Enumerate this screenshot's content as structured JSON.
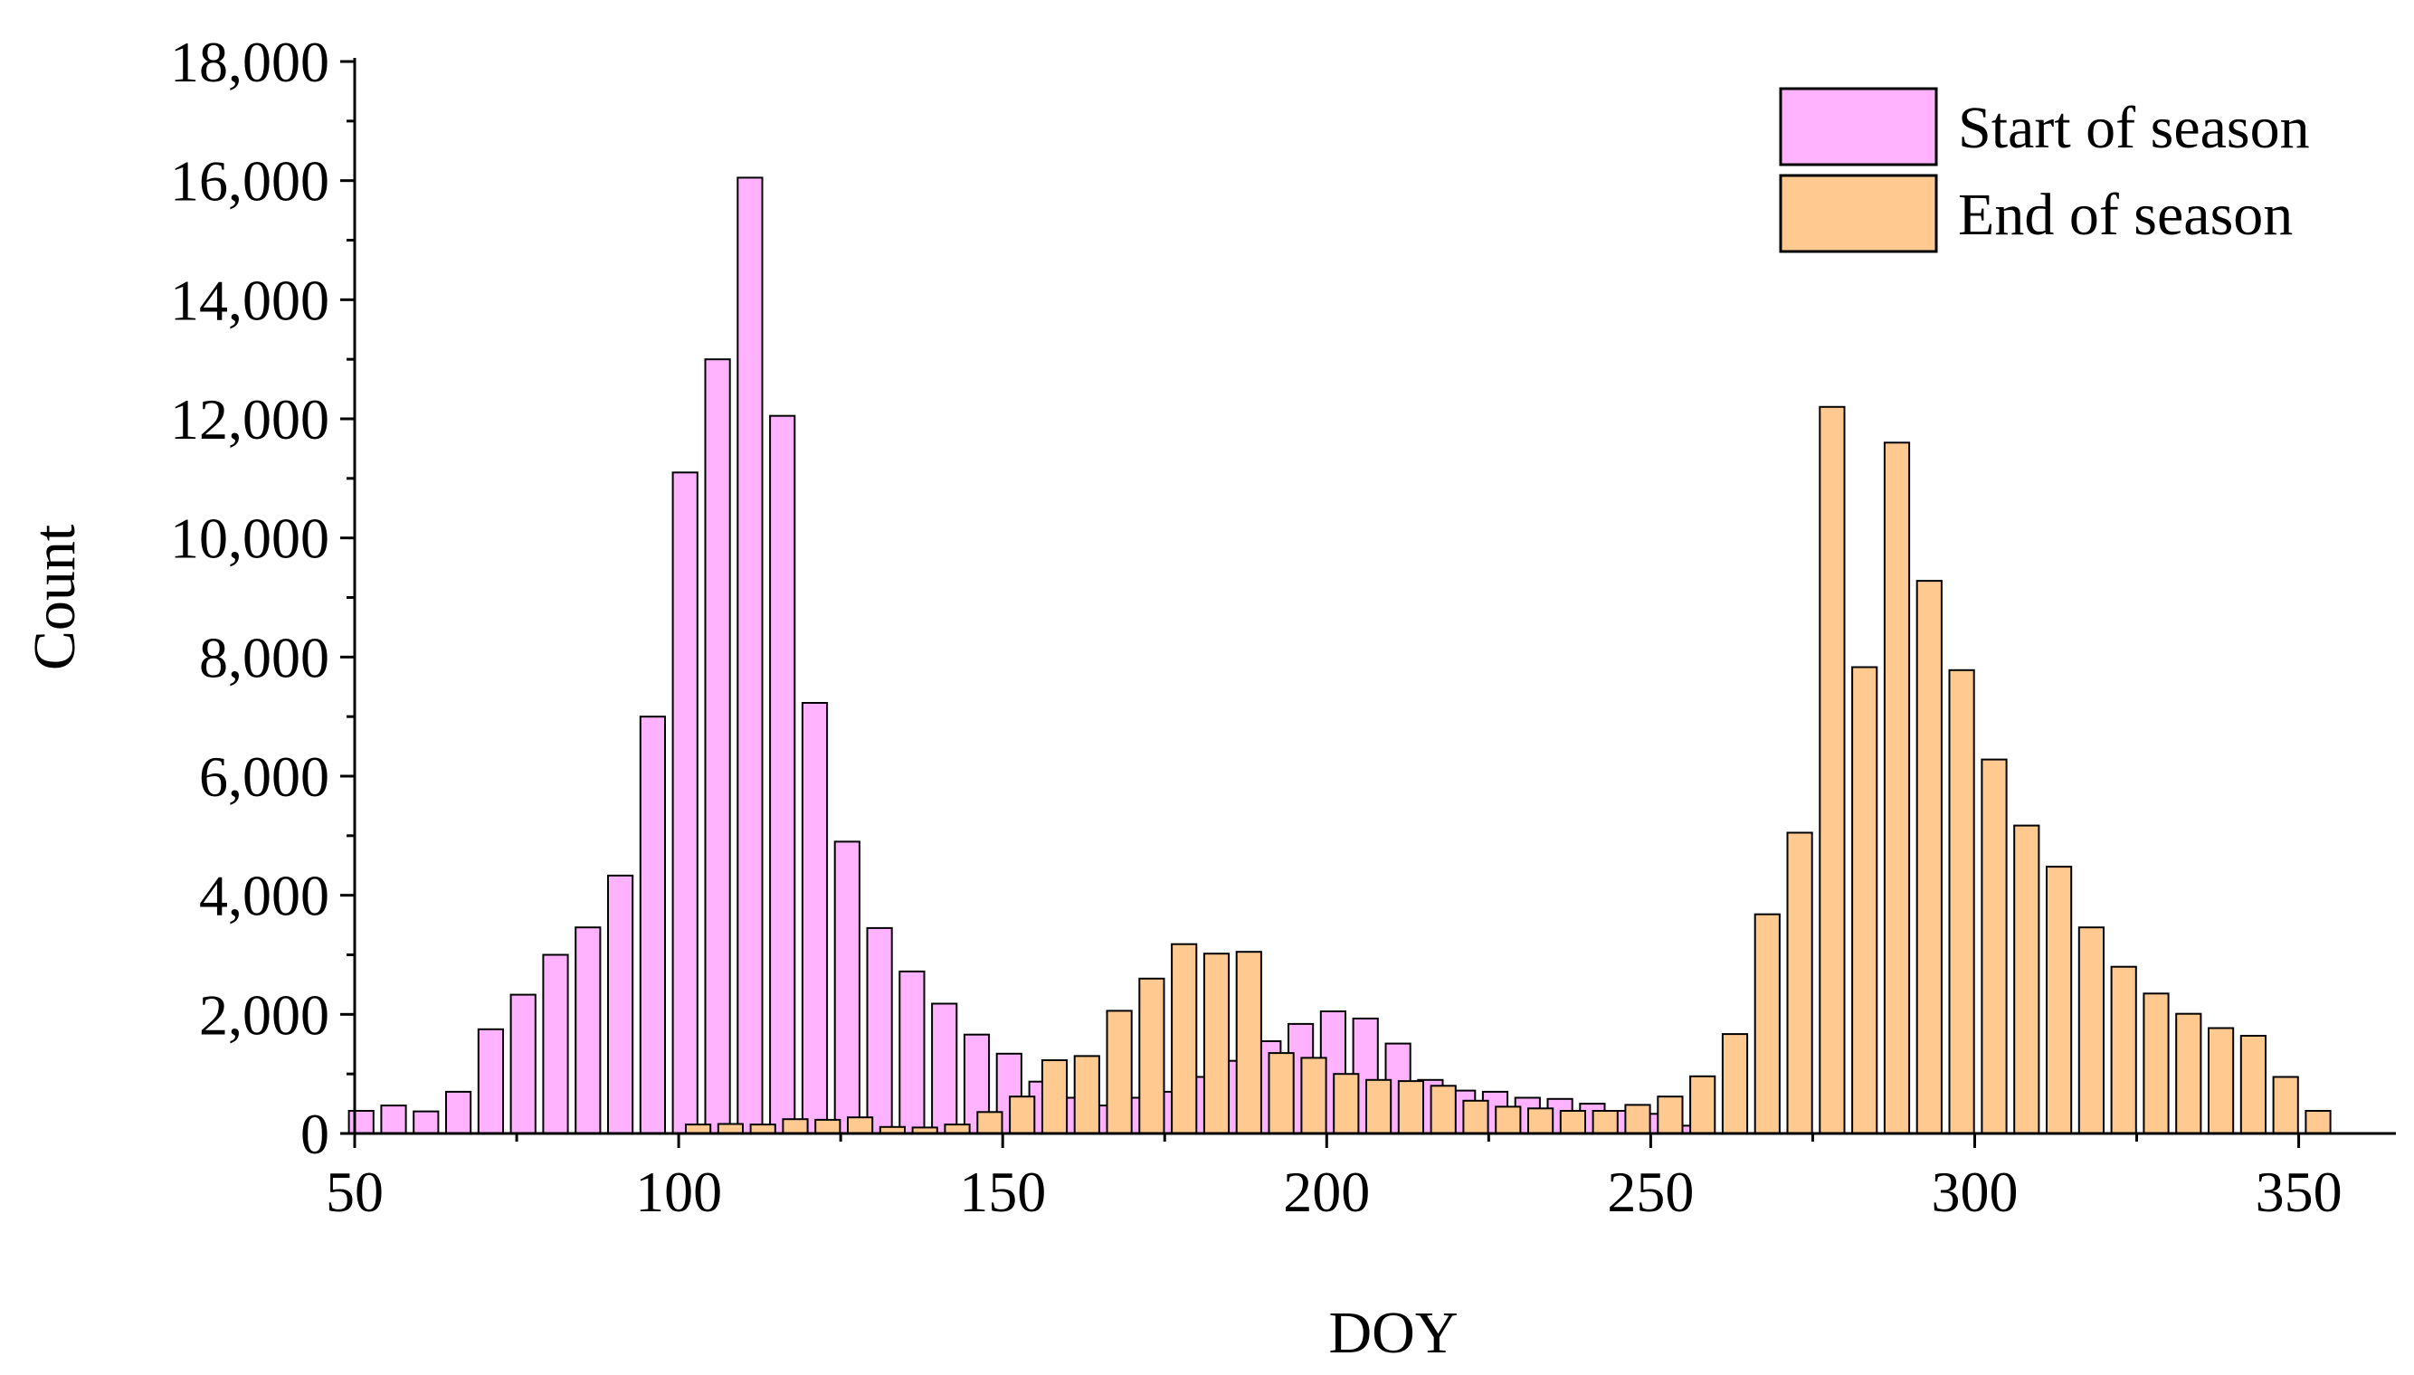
{
  "chart_data": {
    "type": "bar",
    "title": "",
    "xlabel": "DOY",
    "ylabel": "Count",
    "xlim": [
      50,
      365
    ],
    "ylim": [
      0,
      18000
    ],
    "xticks": [
      50,
      100,
      150,
      200,
      250,
      300,
      350
    ],
    "xtick_labels": [
      "50",
      "100",
      "150",
      "200",
      "250",
      "300",
      "350"
    ],
    "yticks": [
      0,
      2000,
      4000,
      6000,
      8000,
      10000,
      12000,
      14000,
      16000,
      18000
    ],
    "ytick_labels": [
      "0",
      "2,000",
      "4,000",
      "6,000",
      "8,000",
      "10,000",
      "12,000",
      "14,000",
      "16,000",
      "18,000"
    ],
    "grid": false,
    "legend_position": "top-right",
    "series": [
      {
        "name": "Start of season",
        "color": "#ffb3ff",
        "points": [
          [
            51,
            380
          ],
          [
            56,
            470
          ],
          [
            61,
            370
          ],
          [
            66,
            700
          ],
          [
            71,
            1750
          ],
          [
            76,
            2330
          ],
          [
            81,
            3000
          ],
          [
            86,
            3460
          ],
          [
            91,
            4330
          ],
          [
            96,
            7000
          ],
          [
            101,
            11100
          ],
          [
            106,
            13000
          ],
          [
            111,
            16050
          ],
          [
            116,
            12050
          ],
          [
            121,
            7230
          ],
          [
            126,
            4900
          ],
          [
            131,
            3450
          ],
          [
            136,
            2720
          ],
          [
            141,
            2180
          ],
          [
            146,
            1660
          ],
          [
            151,
            1340
          ],
          [
            156,
            870
          ],
          [
            161,
            600
          ],
          [
            166,
            470
          ],
          [
            171,
            600
          ],
          [
            176,
            700
          ],
          [
            181,
            950
          ],
          [
            186,
            1220
          ],
          [
            191,
            1550
          ],
          [
            196,
            1840
          ],
          [
            201,
            2050
          ],
          [
            206,
            1930
          ],
          [
            211,
            1510
          ],
          [
            216,
            900
          ],
          [
            221,
            720
          ],
          [
            226,
            700
          ],
          [
            231,
            600
          ],
          [
            236,
            580
          ],
          [
            241,
            500
          ],
          [
            246,
            380
          ],
          [
            251,
            330
          ],
          [
            256,
            130
          ]
        ]
      },
      {
        "name": "End of season",
        "color": "#ffc990",
        "points": [
          [
            103,
            150
          ],
          [
            108,
            160
          ],
          [
            113,
            150
          ],
          [
            118,
            240
          ],
          [
            123,
            230
          ],
          [
            128,
            270
          ],
          [
            133,
            110
          ],
          [
            138,
            100
          ],
          [
            143,
            150
          ],
          [
            148,
            360
          ],
          [
            153,
            620
          ],
          [
            158,
            1230
          ],
          [
            163,
            1300
          ],
          [
            168,
            2060
          ],
          [
            173,
            2600
          ],
          [
            178,
            3180
          ],
          [
            183,
            3020
          ],
          [
            188,
            3050
          ],
          [
            193,
            1350
          ],
          [
            198,
            1270
          ],
          [
            203,
            1000
          ],
          [
            208,
            900
          ],
          [
            213,
            880
          ],
          [
            218,
            800
          ],
          [
            223,
            550
          ],
          [
            228,
            450
          ],
          [
            233,
            420
          ],
          [
            238,
            380
          ],
          [
            243,
            380
          ],
          [
            248,
            480
          ],
          [
            253,
            620
          ],
          [
            258,
            960
          ],
          [
            263,
            1670
          ],
          [
            268,
            3680
          ],
          [
            273,
            5050
          ],
          [
            278,
            12200
          ],
          [
            283,
            7830
          ],
          [
            288,
            11600
          ],
          [
            293,
            9280
          ],
          [
            298,
            7780
          ],
          [
            303,
            6280
          ],
          [
            308,
            5170
          ],
          [
            313,
            4480
          ],
          [
            318,
            3460
          ],
          [
            323,
            2800
          ],
          [
            328,
            2350
          ],
          [
            333,
            2010
          ],
          [
            338,
            1770
          ],
          [
            343,
            1640
          ],
          [
            348,
            950
          ],
          [
            353,
            380
          ]
        ]
      }
    ]
  }
}
